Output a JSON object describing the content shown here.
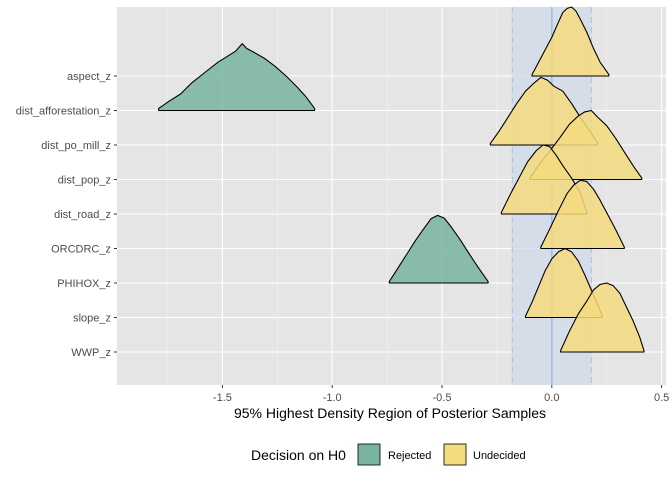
{
  "chart_data": {
    "type": "ridgeline",
    "xlabel": "95% Highest Density Region of Posterior Samples",
    "ylabel": "",
    "xlim": [
      -1.98,
      0.52
    ],
    "xticks": [
      -1.5,
      -1.0,
      -0.5,
      0.0,
      0.5
    ],
    "xtick_labels": [
      "-1.5",
      "-1.0",
      "-0.5",
      "0.0",
      "0.5"
    ],
    "reference_line": 0.0,
    "rope": [
      -0.18,
      0.18
    ],
    "grid": true,
    "legend": {
      "title": "Decision on H0",
      "position": "bottom",
      "items": [
        {
          "label": "Rejected",
          "color": "#79b4a0"
        },
        {
          "label": "Undecided",
          "color": "#f4db7e"
        }
      ]
    },
    "categories": [
      "aspect_z",
      "dist_afforestation_z",
      "dist_po_mill_z",
      "dist_pop_z",
      "dist_road_z",
      "ORCDRC_z",
      "PHIHOX_z",
      "slope_z",
      "WWP_z"
    ],
    "series": [
      {
        "name": "aspect_z",
        "decision": "Undecided",
        "hdi": [
          -0.09,
          0.26
        ],
        "peak": 0.08,
        "curve": [
          [
            -0.09,
            0.02
          ],
          [
            -0.06,
            0.2
          ],
          [
            -0.03,
            0.38
          ],
          [
            0.0,
            0.56
          ],
          [
            0.03,
            0.78
          ],
          [
            0.05,
            0.92
          ],
          [
            0.07,
            0.98
          ],
          [
            0.09,
            1.0
          ],
          [
            0.11,
            0.94
          ],
          [
            0.13,
            0.82
          ],
          [
            0.16,
            0.63
          ],
          [
            0.19,
            0.4
          ],
          [
            0.22,
            0.2
          ],
          [
            0.26,
            0.02
          ]
        ]
      },
      {
        "name": "dist_afforestation_z",
        "decision": "Rejected",
        "hdi": [
          -1.79,
          -1.08
        ],
        "peak": -1.41,
        "curve": [
          [
            -1.79,
            0.03
          ],
          [
            -1.74,
            0.14
          ],
          [
            -1.69,
            0.24
          ],
          [
            -1.64,
            0.4
          ],
          [
            -1.58,
            0.55
          ],
          [
            -1.52,
            0.7
          ],
          [
            -1.47,
            0.8
          ],
          [
            -1.44,
            0.86
          ],
          [
            -1.41,
            0.97
          ],
          [
            -1.39,
            0.9
          ],
          [
            -1.36,
            0.85
          ],
          [
            -1.31,
            0.76
          ],
          [
            -1.26,
            0.64
          ],
          [
            -1.21,
            0.5
          ],
          [
            -1.16,
            0.34
          ],
          [
            -1.12,
            0.2
          ],
          [
            -1.08,
            0.03
          ]
        ]
      },
      {
        "name": "dist_po_mill_z",
        "decision": "Undecided",
        "hdi": [
          -0.28,
          0.21
        ],
        "peak": -0.05,
        "curve": [
          [
            -0.28,
            0.02
          ],
          [
            -0.24,
            0.2
          ],
          [
            -0.2,
            0.4
          ],
          [
            -0.16,
            0.6
          ],
          [
            -0.12,
            0.78
          ],
          [
            -0.08,
            0.9
          ],
          [
            -0.05,
            0.98
          ],
          [
            -0.02,
            0.94
          ],
          [
            0.01,
            0.85
          ],
          [
            0.05,
            0.78
          ],
          [
            0.09,
            0.6
          ],
          [
            0.13,
            0.4
          ],
          [
            0.17,
            0.22
          ],
          [
            0.21,
            0.02
          ]
        ]
      },
      {
        "name": "dist_pop_z",
        "decision": "Undecided",
        "hdi": [
          -0.1,
          0.41
        ],
        "peak": 0.17,
        "curve": [
          [
            -0.1,
            0.02
          ],
          [
            -0.05,
            0.25
          ],
          [
            0.0,
            0.45
          ],
          [
            0.04,
            0.62
          ],
          [
            0.08,
            0.8
          ],
          [
            0.12,
            0.92
          ],
          [
            0.15,
            0.98
          ],
          [
            0.18,
            1.0
          ],
          [
            0.21,
            0.9
          ],
          [
            0.25,
            0.78
          ],
          [
            0.29,
            0.6
          ],
          [
            0.33,
            0.4
          ],
          [
            0.37,
            0.2
          ],
          [
            0.41,
            0.02
          ]
        ]
      },
      {
        "name": "dist_road_z",
        "decision": "Undecided",
        "hdi": [
          -0.23,
          0.16
        ],
        "peak": -0.02,
        "curve": [
          [
            -0.23,
            0.02
          ],
          [
            -0.19,
            0.28
          ],
          [
            -0.15,
            0.52
          ],
          [
            -0.11,
            0.76
          ],
          [
            -0.07,
            0.92
          ],
          [
            -0.04,
            1.0
          ],
          [
            -0.01,
            0.98
          ],
          [
            0.02,
            0.85
          ],
          [
            0.05,
            0.7
          ],
          [
            0.09,
            0.52
          ],
          [
            0.13,
            0.3
          ],
          [
            0.16,
            0.02
          ]
        ]
      },
      {
        "name": "ORCDRC_z",
        "decision": "Undecided",
        "hdi": [
          -0.05,
          0.33
        ],
        "peak": 0.15,
        "curve": [
          [
            -0.05,
            0.02
          ],
          [
            -0.01,
            0.28
          ],
          [
            0.03,
            0.55
          ],
          [
            0.07,
            0.8
          ],
          [
            0.1,
            0.92
          ],
          [
            0.13,
            0.99
          ],
          [
            0.16,
            0.97
          ],
          [
            0.19,
            0.86
          ],
          [
            0.22,
            0.7
          ],
          [
            0.25,
            0.52
          ],
          [
            0.29,
            0.28
          ],
          [
            0.33,
            0.02
          ]
        ]
      },
      {
        "name": "PHIHOX_z",
        "decision": "Rejected",
        "hdi": [
          -0.74,
          -0.29
        ],
        "peak": -0.52,
        "curve": [
          [
            -0.74,
            0.02
          ],
          [
            -0.7,
            0.22
          ],
          [
            -0.66,
            0.42
          ],
          [
            -0.62,
            0.62
          ],
          [
            -0.58,
            0.8
          ],
          [
            -0.55,
            0.93
          ],
          [
            -0.52,
            0.98
          ],
          [
            -0.49,
            0.94
          ],
          [
            -0.46,
            0.82
          ],
          [
            -0.42,
            0.64
          ],
          [
            -0.38,
            0.44
          ],
          [
            -0.34,
            0.25
          ],
          [
            -0.29,
            0.02
          ]
        ]
      },
      {
        "name": "slope_z",
        "decision": "Undecided",
        "hdi": [
          -0.12,
          0.23
        ],
        "peak": 0.06,
        "curve": [
          [
            -0.12,
            0.02
          ],
          [
            -0.09,
            0.22
          ],
          [
            -0.06,
            0.45
          ],
          [
            -0.03,
            0.68
          ],
          [
            0.0,
            0.85
          ],
          [
            0.03,
            0.95
          ],
          [
            0.06,
            1.0
          ],
          [
            0.09,
            0.95
          ],
          [
            0.12,
            0.82
          ],
          [
            0.15,
            0.62
          ],
          [
            0.18,
            0.4
          ],
          [
            0.21,
            0.18
          ],
          [
            0.23,
            0.02
          ]
        ]
      },
      {
        "name": "WWP_z",
        "decision": "Undecided",
        "hdi": [
          0.04,
          0.42
        ],
        "peak": 0.23,
        "curve": [
          [
            0.04,
            0.02
          ],
          [
            0.08,
            0.3
          ],
          [
            0.12,
            0.55
          ],
          [
            0.16,
            0.74
          ],
          [
            0.19,
            0.9
          ],
          [
            0.22,
            0.98
          ],
          [
            0.25,
            1.0
          ],
          [
            0.28,
            0.96
          ],
          [
            0.31,
            0.85
          ],
          [
            0.34,
            0.65
          ],
          [
            0.37,
            0.45
          ],
          [
            0.4,
            0.22
          ],
          [
            0.42,
            0.02
          ]
        ]
      }
    ]
  }
}
